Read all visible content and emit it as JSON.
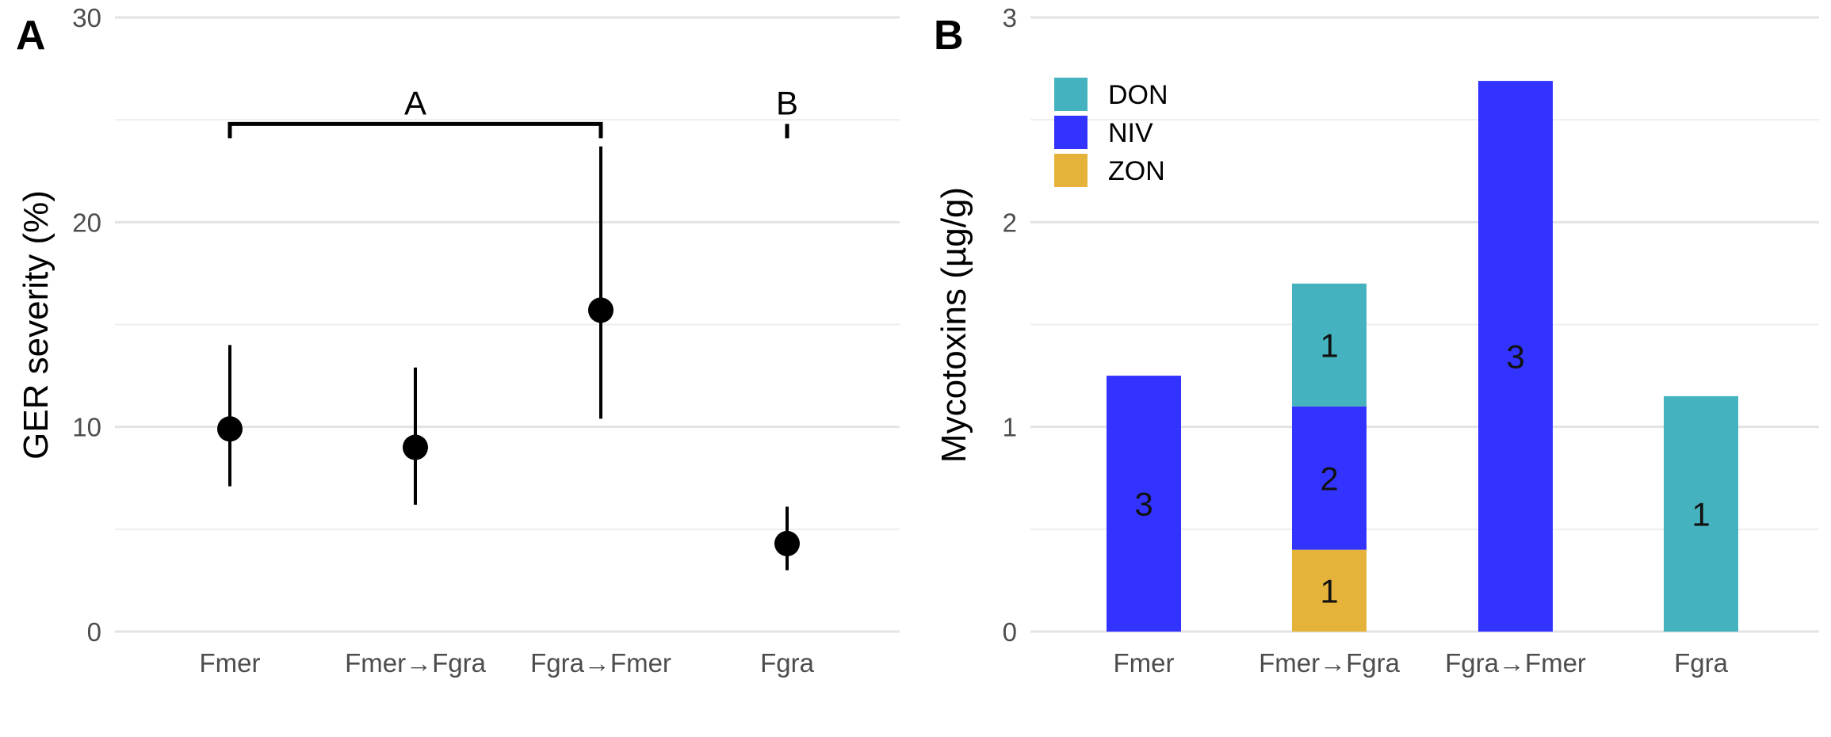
{
  "chart_data": [
    {
      "panel": "A",
      "type": "scatter",
      "title": "",
      "xlabel": "",
      "ylabel": "GER severity (%)",
      "ylim": [
        0,
        30
      ],
      "yticks": [
        0,
        10,
        20,
        30
      ],
      "grid": true,
      "categories": [
        "Fmer",
        "Fmer→Fgra",
        "Fgra→Fmer",
        "Fgra"
      ],
      "points": [
        {
          "category": "Fmer",
          "y": 9.9,
          "lower": 7.1,
          "upper": 14.0
        },
        {
          "category": "Fmer→Fgra",
          "y": 9.0,
          "lower": 6.2,
          "upper": 12.9
        },
        {
          "category": "Fgra→Fmer",
          "y": 15.7,
          "lower": 10.4,
          "upper": 23.7
        },
        {
          "category": "Fgra",
          "y": 4.3,
          "lower": 3.0,
          "upper": 6.1
        }
      ],
      "groups": [
        {
          "label": "A",
          "from": "Fmer",
          "to": "Fgra→Fmer",
          "y": 24.8,
          "tick_bottom": 24.1
        },
        {
          "label": "B",
          "from": "Fgra",
          "to": "Fgra",
          "y": 24.8,
          "tick_bottom": 24.1
        }
      ],
      "style": {
        "point_color": "#000000"
      }
    },
    {
      "panel": "B",
      "type": "bar",
      "stacked": true,
      "title": "",
      "xlabel": "",
      "ylabel": "Mycotoxins (µg/g)",
      "ylim": [
        0,
        3
      ],
      "yticks": [
        0,
        1,
        2,
        3
      ],
      "grid": true,
      "legend_position": "top-left",
      "categories": [
        "Fmer",
        "Fmer→Fgra",
        "Fgra→Fmer",
        "Fgra"
      ],
      "series": [
        {
          "name": "ZON",
          "color": "#e6b33a",
          "values": [
            0,
            0.4,
            0,
            0
          ],
          "labels": [
            "",
            "1",
            "",
            ""
          ]
        },
        {
          "name": "NIV",
          "color": "#3333ff",
          "values": [
            1.25,
            0.7,
            2.69,
            0
          ],
          "labels": [
            "3",
            "2",
            "3",
            ""
          ]
        },
        {
          "name": "DON",
          "color": "#45b3bf",
          "values": [
            0,
            0.6,
            0,
            1.15
          ],
          "labels": [
            "",
            "1",
            "",
            "1"
          ]
        }
      ],
      "legend_order": [
        "DON",
        "NIV",
        "ZON"
      ]
    }
  ]
}
